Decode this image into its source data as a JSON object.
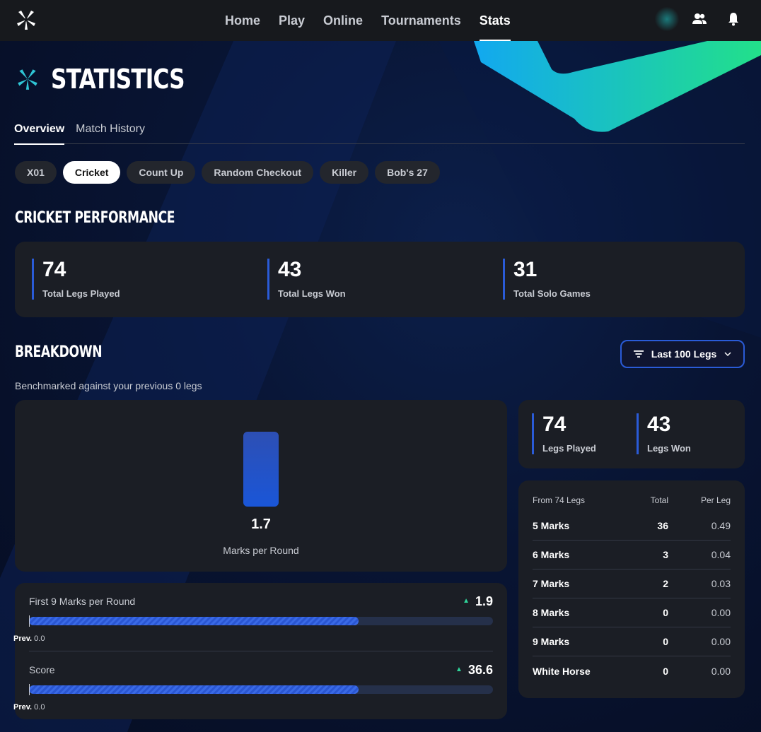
{
  "nav": {
    "links": [
      {
        "label": "Home",
        "active": false
      },
      {
        "label": "Play",
        "active": false
      },
      {
        "label": "Online",
        "active": false
      },
      {
        "label": "Tournaments",
        "active": false
      },
      {
        "label": "Stats",
        "active": true
      }
    ],
    "icons": [
      "logo-icon",
      "friends-icon",
      "bell-icon"
    ]
  },
  "page": {
    "title": "STATISTICS",
    "tabs": [
      {
        "label": "Overview",
        "active": true
      },
      {
        "label": "Match History",
        "active": false
      }
    ],
    "game_chips": [
      {
        "label": "X01",
        "active": false
      },
      {
        "label": "Cricket",
        "active": true
      },
      {
        "label": "Count Up",
        "active": false
      },
      {
        "label": "Random Checkout",
        "active": false
      },
      {
        "label": "Killer",
        "active": false
      },
      {
        "label": "Bob's 27",
        "active": false
      }
    ]
  },
  "performance": {
    "title": "CRICKET PERFORMANCE",
    "stats": [
      {
        "value": "74",
        "label": "Total Legs Played"
      },
      {
        "value": "43",
        "label": "Total Legs Won"
      },
      {
        "value": "31",
        "label": "Total Solo Games"
      }
    ]
  },
  "breakdown": {
    "title": "BREAKDOWN",
    "filter_label": "Last 100 Legs",
    "subtitle": "Benchmarked against your previous 0 legs",
    "main_metric": {
      "value": "1.7",
      "label": "Marks per Round"
    },
    "progress": [
      {
        "label": "First 9 Marks per Round",
        "value": "1.9",
        "trend": "up",
        "fill": 0.71,
        "prev_label": "Prev.",
        "prev_value": "0.0"
      },
      {
        "label": "Score",
        "value": "36.6",
        "trend": "up",
        "fill": 0.71,
        "prev_label": "Prev.",
        "prev_value": "0.0"
      }
    ],
    "legs": [
      {
        "value": "74",
        "label": "Legs Played"
      },
      {
        "value": "43",
        "label": "Legs Won"
      }
    ],
    "table": {
      "headers": [
        "From 74 Legs",
        "Total",
        "Per Leg"
      ],
      "rows": [
        {
          "name": "5 Marks",
          "total": "36",
          "per_leg": "0.49"
        },
        {
          "name": "6 Marks",
          "total": "3",
          "per_leg": "0.04"
        },
        {
          "name": "7 Marks",
          "total": "2",
          "per_leg": "0.03"
        },
        {
          "name": "8 Marks",
          "total": "0",
          "per_leg": "0.00"
        },
        {
          "name": "9 Marks",
          "total": "0",
          "per_leg": "0.00"
        },
        {
          "name": "White Horse",
          "total": "0",
          "per_leg": "0.00"
        }
      ]
    }
  },
  "colors": {
    "accent": "#2a5bd7",
    "trend_up": "#2fd49a",
    "card": "#1b1e25"
  }
}
